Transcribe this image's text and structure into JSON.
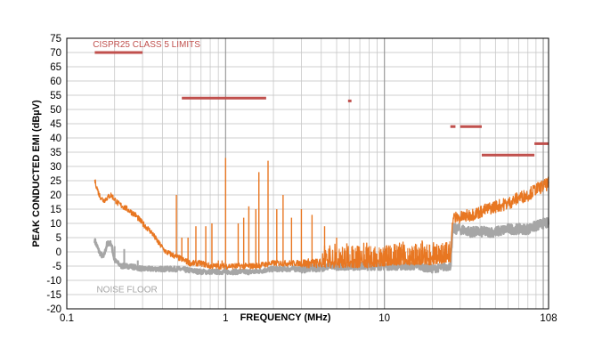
{
  "chart_data": {
    "type": "line",
    "xlabel": "FREQUENCY (MHz)",
    "ylabel": "PEAK CONDUCTED EMI (dBµV)",
    "x_scale": "log",
    "xlim": [
      0.1,
      108
    ],
    "ylim": [
      -20,
      75
    ],
    "x_ticks": [
      0.1,
      1,
      10,
      108
    ],
    "x_tick_labels": [
      "0.1",
      "1",
      "10",
      "108"
    ],
    "y_ticks": [
      75,
      70,
      65,
      60,
      55,
      50,
      45,
      40,
      35,
      30,
      25,
      20,
      15,
      10,
      5,
      0,
      -5,
      -10,
      -15,
      -20
    ],
    "y_tick_labels": [
      "75",
      "70",
      "65",
      "60",
      "55",
      "50",
      "45",
      "40",
      "35",
      "30",
      "25",
      "20",
      "15",
      "10",
      "5",
      "0",
      "-5",
      "-10",
      "-15",
      "-20"
    ],
    "grid": true,
    "annotations": [
      {
        "text": "CISPR25 CLASS 5 LIMITS",
        "color": "#c0504d"
      },
      {
        "text": "NOISE FLOOR",
        "color": "#a6a6a6"
      }
    ],
    "limit_lines": {
      "color": "#c0504d",
      "segments": [
        {
          "x": [
            0.15,
            0.3
          ],
          "y": 70
        },
        {
          "x": [
            0.53,
            1.8
          ],
          "y": 54
        },
        {
          "x": [
            5.9,
            6.2
          ],
          "y": 53
        },
        {
          "x": [
            26,
            28
          ],
          "y": 44
        },
        {
          "x": [
            30,
            41
          ],
          "y": 44
        },
        {
          "x": [
            41,
            88
          ],
          "y": 34
        },
        {
          "x": [
            88,
            108
          ],
          "y": 38
        }
      ]
    },
    "series": [
      {
        "color": "#e87722",
        "baseline": [
          [
            0.15,
            25
          ],
          [
            0.16,
            20
          ],
          [
            0.17,
            18
          ],
          [
            0.19,
            20
          ],
          [
            0.21,
            17
          ],
          [
            0.24,
            15
          ],
          [
            0.27,
            13
          ],
          [
            0.3,
            10
          ],
          [
            0.34,
            7
          ],
          [
            0.38,
            3
          ],
          [
            0.42,
            0
          ],
          [
            0.46,
            -1
          ],
          [
            0.5,
            -2
          ],
          [
            0.55,
            -3
          ],
          [
            0.6,
            -4
          ],
          [
            0.7,
            -4
          ],
          [
            0.8,
            -5
          ],
          [
            0.9,
            -5
          ],
          [
            1.0,
            -5
          ],
          [
            1.2,
            -5
          ],
          [
            1.5,
            -5
          ],
          [
            2,
            -4
          ],
          [
            3,
            -4
          ],
          [
            5,
            -4
          ],
          [
            8,
            -4
          ],
          [
            12,
            -3
          ],
          [
            17,
            -3
          ],
          [
            20,
            -3
          ],
          [
            26,
            -2
          ],
          [
            27,
            12
          ],
          [
            30,
            12
          ],
          [
            35,
            13
          ],
          [
            40,
            14
          ],
          [
            50,
            16
          ],
          [
            60,
            17
          ],
          [
            70,
            19
          ],
          [
            80,
            20
          ],
          [
            90,
            22
          ],
          [
            100,
            23
          ],
          [
            108,
            24
          ]
        ],
        "spikes": [
          [
            0.49,
            20
          ],
          [
            0.53,
            5
          ],
          [
            0.58,
            5
          ],
          [
            0.65,
            9
          ],
          [
            0.75,
            9
          ],
          [
            0.82,
            10
          ],
          [
            0.9,
            -3
          ],
          [
            0.95,
            -3
          ],
          [
            1.0,
            33
          ],
          [
            1.2,
            10
          ],
          [
            1.3,
            12
          ],
          [
            1.4,
            16
          ],
          [
            1.55,
            15
          ],
          [
            1.62,
            28
          ],
          [
            1.85,
            32
          ],
          [
            2.1,
            15
          ],
          [
            2.3,
            20
          ],
          [
            2.6,
            12
          ],
          [
            3.0,
            15
          ],
          [
            3.5,
            13
          ],
          [
            4.2,
            9
          ],
          [
            5.0,
            5
          ],
          [
            5.8,
            3
          ],
          [
            6.8,
            2
          ],
          [
            8,
            2
          ],
          [
            9.5,
            1
          ],
          [
            11,
            1
          ],
          [
            13,
            1
          ],
          [
            15,
            1
          ],
          [
            18,
            1
          ],
          [
            21,
            1
          ],
          [
            24,
            1
          ]
        ],
        "hf_noise": true
      },
      {
        "color": "#a6a6a6",
        "baseline": [
          [
            0.15,
            4
          ],
          [
            0.16,
            0
          ],
          [
            0.17,
            -2
          ],
          [
            0.18,
            3
          ],
          [
            0.19,
            3
          ],
          [
            0.2,
            -3
          ],
          [
            0.22,
            -5
          ],
          [
            0.25,
            -5
          ],
          [
            0.3,
            -6
          ],
          [
            0.4,
            -6
          ],
          [
            0.5,
            -6
          ],
          [
            0.7,
            -7
          ],
          [
            1.0,
            -7
          ],
          [
            1.5,
            -7
          ],
          [
            2,
            -6
          ],
          [
            3,
            -6
          ],
          [
            5,
            -5
          ],
          [
            8,
            -5
          ],
          [
            12,
            -5
          ],
          [
            16,
            -5
          ],
          [
            20,
            -6
          ],
          [
            26,
            -5
          ],
          [
            27,
            8
          ],
          [
            30,
            8
          ],
          [
            35,
            7
          ],
          [
            40,
            7
          ],
          [
            50,
            7
          ],
          [
            60,
            8
          ],
          [
            70,
            8
          ],
          [
            80,
            8
          ],
          [
            90,
            9
          ],
          [
            100,
            10
          ],
          [
            108,
            10
          ]
        ],
        "spikes": [
          [
            0.2,
            2
          ],
          [
            0.23,
            1
          ],
          [
            0.28,
            -3
          ]
        ],
        "hf_noise": true
      }
    ]
  }
}
